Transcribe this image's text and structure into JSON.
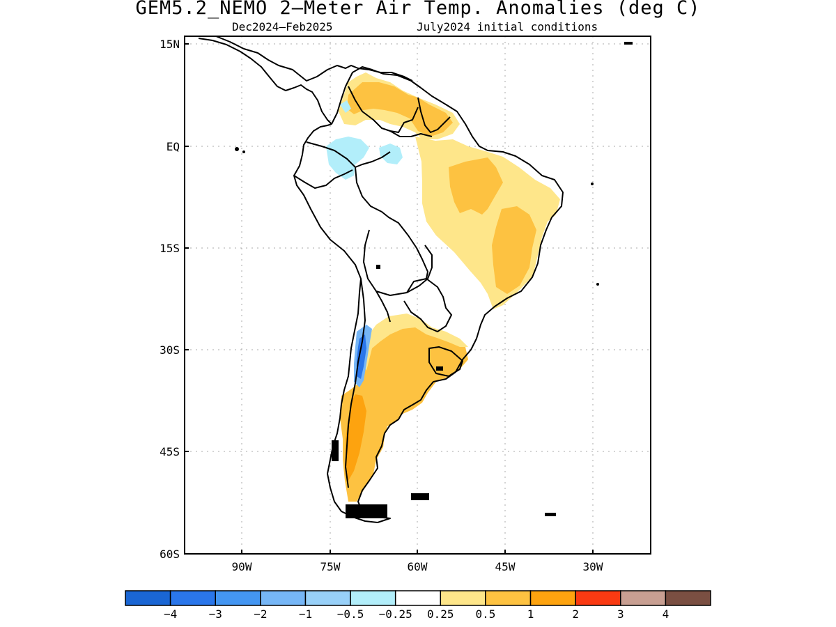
{
  "title": "GEM5.2_NEMO 2—Meter Air Temp. Anomalies (deg C)",
  "subtitle_left": "Dec2024—Feb2025",
  "subtitle_right": "July2024 initial conditions",
  "map": {
    "region": "South America",
    "lon_range": [
      -97,
      -30
    ],
    "lat_range": [
      -60,
      15
    ],
    "lat_ticks": [
      "15N",
      "EQ",
      "15S",
      "30S",
      "45S",
      "60S"
    ],
    "lon_ticks": [
      "90W",
      "75W",
      "60W",
      "45W",
      "30W"
    ],
    "gridlines": "dotted"
  },
  "colorbar": {
    "colors": [
      "#1a66d4",
      "#2a76ea",
      "#4496f2",
      "#76b6f6",
      "#98d0f8",
      "#b2eefa",
      "#ffffff",
      "#fee68a",
      "#fdc241",
      "#fda30f",
      "#fa3a12",
      "#c89f92",
      "#7a4f42"
    ],
    "labels": [
      "−4",
      "−3",
      "−2",
      "−1",
      "−0.5",
      "−0.25",
      "0.25",
      "0.5",
      "1",
      "2",
      "3",
      "4"
    ]
  }
}
